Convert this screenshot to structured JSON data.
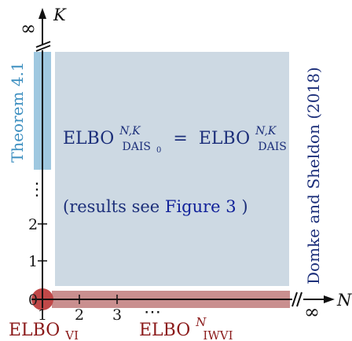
{
  "axes": {
    "y_label": "K",
    "x_label": "N",
    "infinity": "∞",
    "y_ticks": [
      "0",
      "1",
      "2"
    ],
    "x_ticks": [
      "1",
      "2",
      "3"
    ],
    "y_dots": "⋮",
    "x_dots": "⋯"
  },
  "regions": {
    "main": {
      "equation_lhs": "ELBO",
      "equation_lhs_sup": "N,K",
      "equation_lhs_sub": "DAIS",
      "equation_lhs_sub_sub": "0",
      "equation_eq": "=",
      "equation_rhs": "ELBO",
      "equation_rhs_sup": "N,K",
      "equation_rhs_sub": "DAIS",
      "note_prefix": "(results see ",
      "note_link": "Figure 3",
      "note_suffix": ")"
    },
    "theorem": {
      "label": "Theorem 4.1"
    },
    "reference": {
      "label": "Domke and Sheldon (2018)"
    },
    "vi": {
      "label": "ELBO",
      "sub": "VI"
    },
    "iwvi": {
      "label": "ELBO",
      "sup": "N",
      "sub": "IWVI"
    }
  },
  "colors": {
    "main_region": "#cdd9e3",
    "theorem_bar": "#9fc8e0",
    "theorem_text": "#3d8fc0",
    "iwvi_bar": "#c98f8f",
    "vi_dot": "#c04848",
    "red_text": "#8b1a1a",
    "navy_text": "#1c2f7a",
    "link_text": "#12229a"
  }
}
